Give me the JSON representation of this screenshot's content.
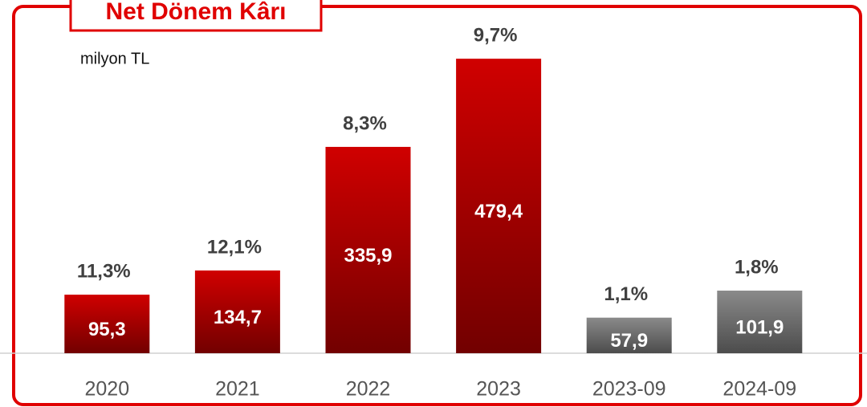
{
  "chart_data": {
    "type": "bar",
    "title": "Net Dönem Kârı",
    "subtitle": "milyon TL",
    "categories": [
      "2020",
      "2021",
      "2022",
      "2023",
      "2023-09",
      "2024-09"
    ],
    "values": [
      95.3,
      134.7,
      335.9,
      479.4,
      57.9,
      101.9
    ],
    "value_labels": [
      "95,3",
      "134,7",
      "335,9",
      "479,4",
      "57,9",
      "101,9"
    ],
    "annotations": [
      "11,3%",
      "12,1%",
      "8,3%",
      "9,7%",
      "1,1%",
      "1,8%"
    ],
    "colors": [
      "#d00000",
      "#d00000",
      "#d00000",
      "#d00000",
      "#8a8a8a",
      "#8a8a8a"
    ],
    "ylim": [
      0,
      575
    ]
  }
}
